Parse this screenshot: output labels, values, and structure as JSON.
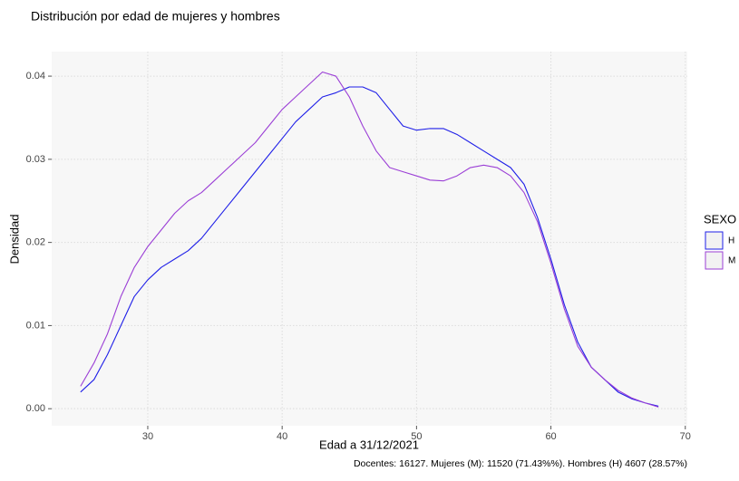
{
  "chart_data": {
    "type": "line",
    "title": "Distribución por edad de mujeres y hombres",
    "x_label": "Edad a 31/12/2021",
    "y_label": "Densidad",
    "caption": "Docentes: 16127. Mujeres (M): 11520 (71.43%%). Hombres (H) 4607 (28.57%)",
    "legend_title": "SEXO",
    "legend_position": "right",
    "grid": true,
    "x": [
      25,
      26,
      27,
      28,
      29,
      30,
      31,
      32,
      33,
      34,
      35,
      36,
      37,
      38,
      39,
      40,
      41,
      42,
      43,
      44,
      45,
      46,
      47,
      48,
      49,
      50,
      51,
      52,
      53,
      54,
      55,
      56,
      57,
      58,
      59,
      60,
      61,
      62,
      63,
      64,
      65,
      66,
      67,
      68
    ],
    "series": [
      {
        "name": "H",
        "color": "#1f1fe8",
        "values": [
          0.002,
          0.0035,
          0.0065,
          0.01,
          0.0135,
          0.0155,
          0.017,
          0.018,
          0.019,
          0.0205,
          0.0225,
          0.0245,
          0.0265,
          0.0285,
          0.0305,
          0.0325,
          0.0345,
          0.036,
          0.0375,
          0.038,
          0.0387,
          0.0387,
          0.038,
          0.036,
          0.034,
          0.0335,
          0.0337,
          0.0337,
          0.033,
          0.032,
          0.031,
          0.03,
          0.029,
          0.027,
          0.023,
          0.018,
          0.0125,
          0.008,
          0.005,
          0.0035,
          0.002,
          0.0012,
          0.0007,
          0.0003
        ]
      },
      {
        "name": "M",
        "color": "#9b3fd6",
        "values": [
          0.0027,
          0.0055,
          0.009,
          0.0135,
          0.017,
          0.0195,
          0.0215,
          0.0235,
          0.025,
          0.026,
          0.0275,
          0.029,
          0.0305,
          0.032,
          0.034,
          0.036,
          0.0375,
          0.039,
          0.0405,
          0.04,
          0.0375,
          0.034,
          0.031,
          0.029,
          0.0285,
          0.028,
          0.0275,
          0.0274,
          0.028,
          0.029,
          0.0293,
          0.029,
          0.028,
          0.026,
          0.0225,
          0.0175,
          0.012,
          0.0075,
          0.005,
          0.0035,
          0.0022,
          0.0013,
          0.0007,
          0.0002
        ]
      }
    ],
    "xlim": [
      22.85,
      70.15
    ],
    "xticks": [
      30,
      40,
      50,
      60,
      70
    ],
    "ylim": [
      -0.00205,
      0.04295
    ],
    "yticks": [
      {
        "value": 0,
        "label": "0.00"
      },
      0.01,
      0.02,
      0.03,
      0.04
    ]
  }
}
